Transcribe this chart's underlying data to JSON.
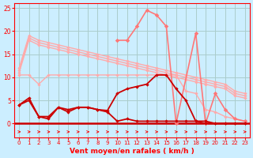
{
  "bg_color": "#cceeff",
  "grid_color": "#aacccc",
  "axis_color": "#ff0000",
  "xlabel": "Vent moyen/en rafales ( km/h )",
  "xlabel_color": "#ff0000",
  "xlim": [
    -0.5,
    23.5
  ],
  "ylim": [
    -3,
    26
  ],
  "yticks": [
    0,
    5,
    10,
    15,
    20,
    25
  ],
  "xticks": [
    0,
    1,
    2,
    3,
    4,
    5,
    6,
    7,
    8,
    9,
    10,
    11,
    12,
    13,
    14,
    15,
    16,
    17,
    18,
    19,
    20,
    21,
    22,
    23
  ],
  "diag1": [
    12,
    19,
    18,
    17.5,
    17,
    16.5,
    16,
    15.5,
    15,
    14.5,
    14,
    13.5,
    13,
    12.5,
    12,
    11.5,
    11,
    10.5,
    10,
    9.5,
    9,
    8.5,
    7,
    6.5
  ],
  "diag2": [
    11.5,
    18.5,
    17.5,
    17,
    16.5,
    16,
    15.5,
    15,
    14.5,
    14,
    13.5,
    13,
    12.5,
    12,
    11.5,
    11,
    10.5,
    10,
    9.5,
    9,
    8.5,
    8,
    6.5,
    6
  ],
  "diag3": [
    11,
    18,
    17,
    16.5,
    16,
    15.5,
    15,
    14.5,
    14,
    13.5,
    13,
    12.5,
    12,
    11.5,
    11,
    10.5,
    10,
    9.5,
    9,
    8.5,
    8,
    7.5,
    6,
    5.5
  ],
  "mid": [
    10.5,
    10.5,
    8.5,
    10.5,
    10.5,
    10.5,
    10.5,
    10.5,
    10.5,
    10.5,
    10.5,
    10.5,
    10.5,
    10.5,
    10.5,
    10.5,
    10.5,
    7,
    6.5,
    3,
    2.5,
    1.5,
    1,
    0.5
  ],
  "dark1": [
    4,
    5.5,
    1.5,
    1,
    3.5,
    2.5,
    3.5,
    3.5,
    3,
    2.5,
    0.5,
    1,
    0.5,
    0.5,
    0.5,
    0.5,
    0.5,
    0.5,
    0.5,
    0,
    0,
    0,
    0,
    0
  ],
  "dark2": [
    4,
    5,
    1.5,
    1.5,
    3.5,
    3,
    3.5,
    3.5,
    3,
    2.8,
    6.5,
    7.5,
    8,
    8.5,
    10.5,
    10.5,
    7.5,
    5,
    0.5,
    0.5,
    0,
    0,
    0,
    0
  ],
  "tall_x": [
    10,
    11,
    12,
    13,
    14,
    15,
    16,
    18,
    19,
    20,
    21,
    22,
    23
  ],
  "tall_y": [
    18,
    18,
    21,
    24.5,
    23.5,
    21,
    0,
    19.5,
    0,
    6.5,
    3,
    1,
    0.5
  ],
  "arrow_color": "#ff0000",
  "light_pink": "#ffaaaa",
  "mid_pink": "#ff7777",
  "dark_red": "#cc0000"
}
